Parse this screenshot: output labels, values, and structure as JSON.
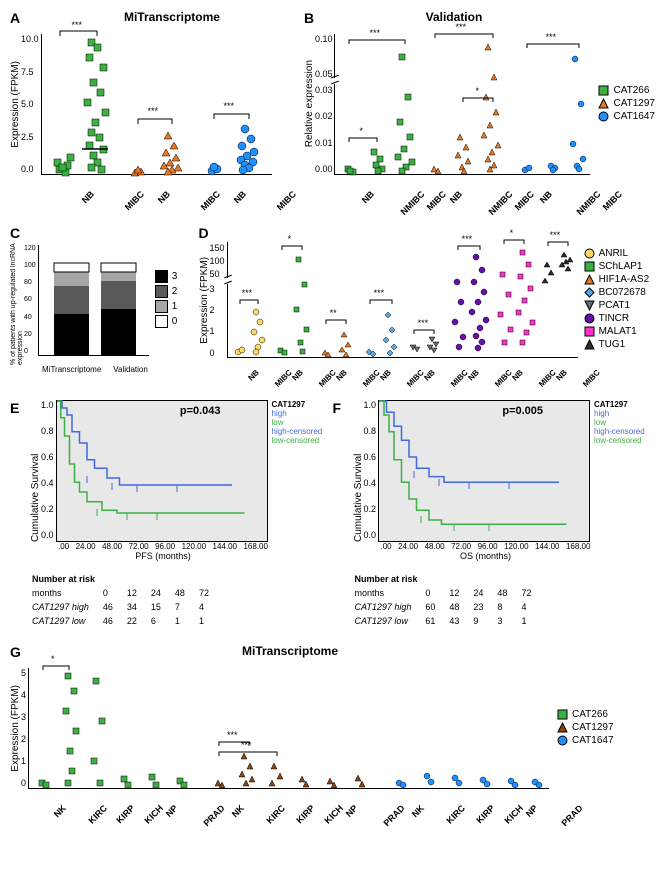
{
  "panelA": {
    "label": "A",
    "title": "MiTranscriptome",
    "ylabel": "Expression (FPKM)",
    "ymax": 10,
    "ytick_step": 2.5,
    "groups": [
      "NB",
      "MIBC",
      "NB",
      "MIBC",
      "NB",
      "MIBC"
    ],
    "markers": [
      "square",
      "square",
      "triangle",
      "triangle",
      "circle",
      "circle"
    ],
    "colors": [
      "#3cb043",
      "#3cb043",
      "#e87722",
      "#e87722",
      "#1e90ff",
      "#1e90ff"
    ],
    "sig": [
      "***",
      "***",
      "***"
    ]
  },
  "panelB": {
    "label": "B",
    "title": "Validation",
    "ylabel": "Relative expression",
    "break_low": 0.03,
    "break_high": 0.1,
    "ymax_low": 0.03,
    "ymax_high": 0.1,
    "groups": [
      "NB",
      "NMIBC",
      "MIBC",
      "NB",
      "NMIBC",
      "MIBC",
      "NB",
      "NMIBC",
      "MIBC"
    ],
    "markers": [
      "square",
      "square",
      "square",
      "triangle",
      "triangle",
      "triangle",
      "circle",
      "circle",
      "circle"
    ],
    "colors": [
      "#3cb043",
      "#3cb043",
      "#3cb043",
      "#e87722",
      "#e87722",
      "#e87722",
      "#1e90ff",
      "#1e90ff",
      "#1e90ff"
    ],
    "legend": [
      {
        "label": "CAT266",
        "marker": "square",
        "color": "#3cb043"
      },
      {
        "label": "CAT1297",
        "marker": "triangle",
        "color": "#e87722"
      },
      {
        "label": "CAT1647",
        "marker": "circle",
        "color": "#1e90ff"
      }
    ],
    "sig": [
      "*",
      "***",
      "***",
      "*",
      "***"
    ]
  },
  "panelC": {
    "label": "C",
    "ylabel": "% of patients with up-regulated lncRNA expression",
    "ymax": 120,
    "ytick_step": 20,
    "xlabels": [
      "MiTranscriptome",
      "Validation"
    ],
    "legend": [
      "3",
      "2",
      "1",
      "0"
    ],
    "colors": [
      "#000000",
      "#595959",
      "#a6a6a6",
      "#ffffff"
    ],
    "stacks": [
      [
        45,
        30,
        15,
        10
      ],
      [
        50,
        30,
        10,
        10
      ]
    ]
  },
  "panelD": {
    "label": "D",
    "ylabel": "Expression (FPKM)",
    "break_low": 3,
    "ymax_high": 150,
    "groups": [
      "NB",
      "MIBC",
      "NB",
      "MIBC",
      "NB",
      "MIBC",
      "NB",
      "MIBC",
      "NB",
      "MIBC",
      "NB",
      "MIBC",
      "NB",
      "MIBC",
      "NB",
      "MIBC"
    ],
    "legend": [
      {
        "label": "ANRIL",
        "marker": "circle",
        "color": "#ffd966"
      },
      {
        "label": "SChLAP1",
        "marker": "square",
        "color": "#3cb043"
      },
      {
        "label": "HIF1A-AS2",
        "marker": "triangle",
        "color": "#e87722"
      },
      {
        "label": "BC072678",
        "marker": "diamond",
        "color": "#5aa9e6"
      },
      {
        "label": "PCAT1",
        "marker": "triangle-down",
        "color": "#6b6b6b"
      },
      {
        "label": "TINCR",
        "marker": "circle",
        "color": "#6a0dad"
      },
      {
        "label": "MALAT1",
        "marker": "square",
        "color": "#ff33cc"
      },
      {
        "label": "TUG1",
        "marker": "triangle",
        "color": "#2b2b2b"
      }
    ],
    "sig_positions": [
      "***",
      "*",
      "**",
      "***",
      "***",
      "***",
      "*",
      "***"
    ]
  },
  "panelE": {
    "label": "E",
    "gene": "CAT1297",
    "pvalue": "p=0.043",
    "ylabel": "Cumulative Survival",
    "xlabel": "PFS (months)",
    "xticks": [
      0,
      24,
      48,
      72,
      96,
      120,
      144,
      168
    ],
    "yticks": [
      "0.0",
      "0.2",
      "0.4",
      "0.6",
      "0.8",
      "1.0"
    ],
    "legend": [
      "high",
      "low",
      "high-censored",
      "low-censored"
    ],
    "colors": {
      "high": "#4169e1",
      "low": "#3cb043"
    },
    "high_line": [
      [
        0,
        1.0
      ],
      [
        4,
        0.95
      ],
      [
        8,
        0.9
      ],
      [
        12,
        0.78
      ],
      [
        18,
        0.7
      ],
      [
        24,
        0.58
      ],
      [
        30,
        0.52
      ],
      [
        40,
        0.45
      ],
      [
        50,
        0.4
      ],
      [
        72,
        0.4
      ],
      [
        140,
        0.4
      ]
    ],
    "low_line": [
      [
        0,
        1.0
      ],
      [
        3,
        0.88
      ],
      [
        6,
        0.75
      ],
      [
        10,
        0.55
      ],
      [
        14,
        0.42
      ],
      [
        18,
        0.35
      ],
      [
        24,
        0.28
      ],
      [
        36,
        0.22
      ],
      [
        48,
        0.2
      ],
      [
        60,
        0.2
      ],
      [
        150,
        0.2
      ]
    ],
    "risk_header": "Number at risk",
    "risk_months": [
      "0",
      "12",
      "24",
      "48",
      "72"
    ],
    "risk_high_label": "CAT1297 high",
    "risk_high": [
      "46",
      "34",
      "15",
      "7",
      "4"
    ],
    "risk_low_label": "CAT1297 low",
    "risk_low": [
      "46",
      "22",
      "6",
      "1",
      "1"
    ]
  },
  "panelF": {
    "label": "F",
    "gene": "CAT1297",
    "pvalue": "p=0.005",
    "ylabel": "Cumulative Survival",
    "xlabel": "OS (months)",
    "xticks": [
      0,
      24,
      48,
      72,
      96,
      120,
      144,
      168
    ],
    "yticks": [
      "0.0",
      "0.2",
      "0.4",
      "0.6",
      "0.8",
      "1.0"
    ],
    "legend": [
      "high",
      "low",
      "high-censored",
      "low-censored"
    ],
    "colors": {
      "high": "#4169e1",
      "low": "#3cb043"
    },
    "high_line": [
      [
        0,
        1.0
      ],
      [
        6,
        0.92
      ],
      [
        12,
        0.82
      ],
      [
        18,
        0.72
      ],
      [
        24,
        0.6
      ],
      [
        30,
        0.52
      ],
      [
        40,
        0.46
      ],
      [
        52,
        0.42
      ],
      [
        72,
        0.42
      ],
      [
        144,
        0.42
      ]
    ],
    "low_line": [
      [
        0,
        1.0
      ],
      [
        4,
        0.9
      ],
      [
        8,
        0.78
      ],
      [
        12,
        0.58
      ],
      [
        18,
        0.42
      ],
      [
        24,
        0.3
      ],
      [
        30,
        0.22
      ],
      [
        40,
        0.15
      ],
      [
        50,
        0.12
      ],
      [
        60,
        0.12
      ],
      [
        150,
        0.12
      ]
    ],
    "risk_header": "Number at risk",
    "risk_months": [
      "0",
      "12",
      "24",
      "48",
      "72"
    ],
    "risk_high_label": "CAT1297 high",
    "risk_high": [
      "60",
      "48",
      "23",
      "8",
      "4"
    ],
    "risk_low_label": "CAT1297 low",
    "risk_low": [
      "61",
      "43",
      "9",
      "3",
      "1"
    ]
  },
  "panelG": {
    "label": "G",
    "title": "MiTranscriptome",
    "ylabel": "Expression (FPKM)",
    "ymax": 5,
    "ytick_step": 1,
    "xgroups": [
      "NK",
      "KIRC",
      "KIRP",
      "KICH",
      "NP",
      "PRAD",
      "NK",
      "KIRC",
      "KIRP",
      "KICH",
      "NP",
      "PRAD",
      "NK",
      "KIRC",
      "KIRP",
      "KICH",
      "NP",
      "PRAD"
    ],
    "legend": [
      {
        "label": "CAT266",
        "marker": "square",
        "color": "#3cb043"
      },
      {
        "label": "CAT1297",
        "marker": "triangle",
        "color": "#8b4513"
      },
      {
        "label": "CAT1647",
        "marker": "circle",
        "color": "#1e90ff"
      }
    ],
    "sig": [
      "*",
      "***",
      "***"
    ]
  }
}
